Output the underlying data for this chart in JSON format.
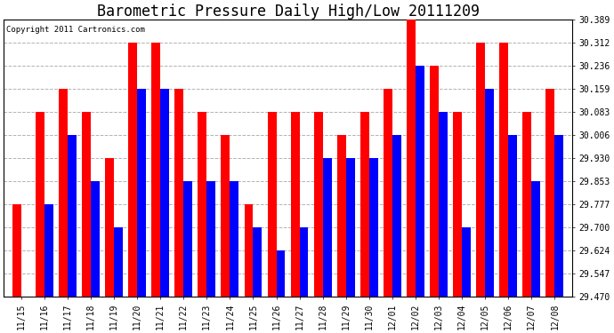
{
  "title": "Barometric Pressure Daily High/Low 20111209",
  "copyright": "Copyright 2011 Cartronics.com",
  "dates": [
    "11/15",
    "11/16",
    "11/17",
    "11/18",
    "11/19",
    "11/20",
    "11/21",
    "11/22",
    "11/23",
    "11/24",
    "11/25",
    "11/26",
    "11/27",
    "11/28",
    "11/29",
    "11/30",
    "12/01",
    "12/02",
    "12/03",
    "12/04",
    "12/05",
    "12/06",
    "12/07",
    "12/08"
  ],
  "highs": [
    29.777,
    30.083,
    30.159,
    30.083,
    29.93,
    30.312,
    30.312,
    30.159,
    30.083,
    30.006,
    29.777,
    30.083,
    30.083,
    30.083,
    30.006,
    30.083,
    30.159,
    30.389,
    30.236,
    30.083,
    30.312,
    30.312,
    30.083,
    30.159
  ],
  "lows": [
    29.47,
    29.777,
    30.006,
    29.853,
    29.7,
    30.159,
    30.159,
    29.853,
    29.853,
    29.853,
    29.7,
    29.624,
    29.7,
    29.93,
    29.93,
    29.93,
    30.006,
    30.236,
    30.083,
    29.7,
    30.159,
    30.006,
    29.853,
    30.006
  ],
  "high_color": "#ff0000",
  "low_color": "#0000ff",
  "background_color": "#ffffff",
  "plot_bg_color": "#ffffff",
  "grid_color": "#aaaaaa",
  "title_fontsize": 12,
  "ytick_values": [
    29.47,
    29.547,
    29.624,
    29.7,
    29.777,
    29.853,
    29.93,
    30.006,
    30.083,
    30.159,
    30.236,
    30.312,
    30.389
  ],
  "ymin": 29.47,
  "ymax": 30.389,
  "bar_width": 0.38,
  "figwidth": 6.9,
  "figheight": 3.75,
  "dpi": 100
}
